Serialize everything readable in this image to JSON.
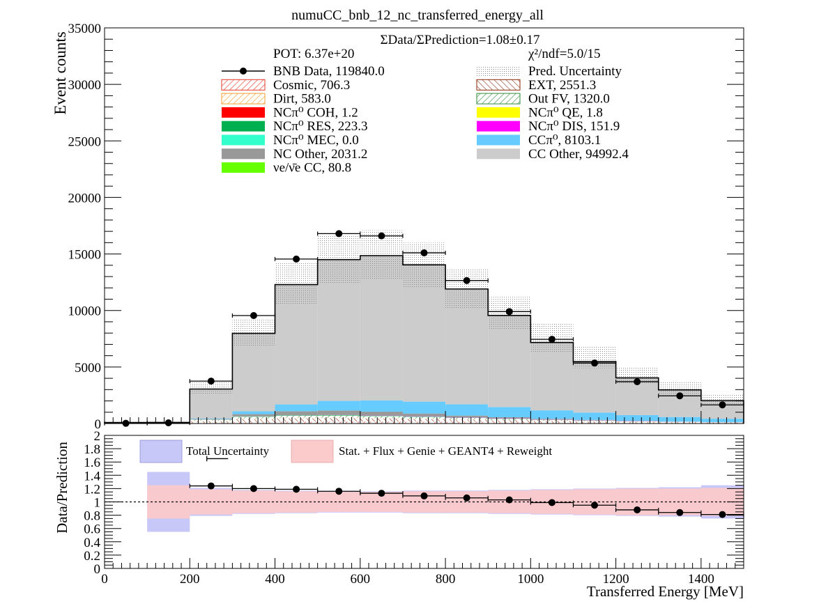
{
  "chart_data": [
    {
      "type": "bar",
      "title": "numuCC_bnb_12_nc_transferred_energy_all",
      "ylabel": "Event counts",
      "xlabel": "",
      "xlim": [
        0,
        1500
      ],
      "ylim": [
        0,
        35000
      ],
      "yticks": [
        "0",
        "5000",
        "10000",
        "15000",
        "20000",
        "25000",
        "30000",
        "35000"
      ],
      "annotations": {
        "ratio": "ΣData/ΣPrediction=1.08±0.17",
        "pot": "POT: 6.37e+20",
        "chi2": "χ²/ndf=5.0/15"
      },
      "legend_position": "top",
      "bin_edges": [
        0,
        100,
        200,
        300,
        400,
        500,
        600,
        700,
        800,
        900,
        1000,
        1100,
        1200,
        1300,
        1400,
        1500
      ],
      "legend": [
        {
          "name": "BNB Data",
          "value": "119840.0",
          "style": "marker",
          "color": "#000000"
        },
        {
          "name": "Pred. Uncertainty",
          "value": "",
          "style": "dots",
          "color": "#9a9a9a"
        },
        {
          "name": "Cosmic",
          "value": "706.3",
          "style": "hatch",
          "color": "#e8392a"
        },
        {
          "name": "EXT",
          "value": "2551.3",
          "style": "hatch2",
          "color": "#8b2a0a"
        },
        {
          "name": "Dirt",
          "value": "583.0",
          "style": "hatch",
          "color": "#f5a030"
        },
        {
          "name": "Out FV",
          "value": "1320.0",
          "style": "hatch",
          "color": "#2e8b3a"
        },
        {
          "name": "NCπ⁰ COH",
          "value": "1.2",
          "style": "fill",
          "color": "#ff0000"
        },
        {
          "name": "NCπ⁰ QE",
          "value": "1.8",
          "style": "fill",
          "color": "#ffff00"
        },
        {
          "name": "NCπ⁰ RES",
          "value": "223.3",
          "style": "fill",
          "color": "#00b050"
        },
        {
          "name": "NCπ⁰ DIS",
          "value": "151.9",
          "style": "fill",
          "color": "#ff00ff"
        },
        {
          "name": "NCπ⁰ MEC",
          "value": "0.0",
          "style": "fill",
          "color": "#33ffcc"
        },
        {
          "name": "CCπ⁰",
          "value": "8103.1",
          "style": "fill",
          "color": "#66ccff"
        },
        {
          "name": "NC Other",
          "value": "2031.2",
          "style": "fill",
          "color": "#999999"
        },
        {
          "name": "CC Other",
          "value": "94992.4",
          "style": "fill",
          "color": "#cccccc"
        },
        {
          "name": "νe/ν̄e CC",
          "value": "80.8",
          "style": "fill",
          "color": "#66ff00"
        }
      ],
      "stack_series": [
        {
          "name": "Cosmic",
          "color": "#e8392a",
          "values": [
            20,
            20,
            60,
            120,
            160,
            170,
            175,
            170,
            150,
            120,
            90,
            70,
            50,
            35,
            25
          ]
        },
        {
          "name": "EXT",
          "color": "#8b2a0a",
          "values": [
            30,
            30,
            150,
            260,
            300,
            300,
            270,
            230,
            200,
            170,
            130,
            110,
            90,
            70,
            50
          ]
        },
        {
          "name": "Dirt",
          "color": "#f5a030",
          "values": [
            5,
            5,
            60,
            80,
            80,
            75,
            60,
            50,
            40,
            30,
            25,
            20,
            15,
            10,
            8
          ]
        },
        {
          "name": "Out FV",
          "color": "#2e8b3a",
          "values": [
            5,
            5,
            70,
            140,
            160,
            160,
            150,
            140,
            120,
            100,
            80,
            60,
            45,
            35,
            25
          ]
        },
        {
          "name": "NCπ⁰ RES",
          "color": "#00b050",
          "values": [
            0,
            0,
            10,
            25,
            35,
            35,
            30,
            25,
            20,
            15,
            10,
            8,
            5,
            3,
            2
          ]
        },
        {
          "name": "NCπ⁰ DIS",
          "color": "#ff00ff",
          "values": [
            0,
            0,
            0,
            2,
            5,
            10,
            15,
            20,
            20,
            20,
            20,
            15,
            12,
            8,
            5
          ]
        },
        {
          "name": "NC Other",
          "color": "#999999",
          "values": [
            5,
            5,
            50,
            200,
            350,
            400,
            350,
            250,
            150,
            100,
            60,
            40,
            25,
            15,
            10
          ]
        },
        {
          "name": "CCπ⁰",
          "color": "#66ccff",
          "values": [
            5,
            5,
            50,
            250,
            600,
            850,
            1000,
            1050,
            1000,
            900,
            750,
            650,
            500,
            400,
            300
          ]
        },
        {
          "name": "CC Other",
          "color": "#cccccc",
          "values": [
            20,
            30,
            2600,
            6900,
            10600,
            12500,
            12800,
            12100,
            10200,
            8100,
            6000,
            4500,
            3300,
            2400,
            1600
          ]
        }
      ],
      "data_points": [
        {
          "x": 50,
          "y": 20,
          "err": 140
        },
        {
          "x": 150,
          "y": 60,
          "err": 250
        },
        {
          "x": 250,
          "y": 3750,
          "err": 60
        },
        {
          "x": 350,
          "y": 9550,
          "err": 100
        },
        {
          "x": 450,
          "y": 14550,
          "err": 120
        },
        {
          "x": 550,
          "y": 16800,
          "err": 130
        },
        {
          "x": 650,
          "y": 16600,
          "err": 130
        },
        {
          "x": 750,
          "y": 15100,
          "err": 120
        },
        {
          "x": 850,
          "y": 12650,
          "err": 110
        },
        {
          "x": 950,
          "y": 9900,
          "err": 100
        },
        {
          "x": 1050,
          "y": 7450,
          "err": 90
        },
        {
          "x": 1150,
          "y": 5350,
          "err": 75
        },
        {
          "x": 1250,
          "y": 3700,
          "err": 60
        },
        {
          "x": 1350,
          "y": 2450,
          "err": 50
        },
        {
          "x": 1450,
          "y": 1650,
          "err": 40
        }
      ],
      "uncertainty_band": [
        {
          "lo": 0,
          "hi": 0
        },
        {
          "lo": 0,
          "hi": 0
        },
        {
          "lo": 2550,
          "hi": 3650
        },
        {
          "lo": 6900,
          "hi": 9200
        },
        {
          "lo": 10500,
          "hi": 14300
        },
        {
          "lo": 12400,
          "hi": 16700
        },
        {
          "lo": 12800,
          "hi": 17100
        },
        {
          "lo": 12000,
          "hi": 16000
        },
        {
          "lo": 10200,
          "hi": 13700
        },
        {
          "lo": 8300,
          "hi": 11200
        },
        {
          "lo": 6300,
          "hi": 8900
        },
        {
          "lo": 4900,
          "hi": 6800
        },
        {
          "lo": 3500,
          "hi": 5000
        },
        {
          "lo": 2500,
          "hi": 3700
        },
        {
          "lo": 1650,
          "hi": 2650
        }
      ]
    },
    {
      "type": "scatter",
      "xlabel": "Transferred Energy [MeV]",
      "ylabel": "Data/Prediction",
      "xlim": [
        0,
        1500
      ],
      "ylim": [
        0,
        2
      ],
      "xticks": [
        "0",
        "200",
        "400",
        "600",
        "800",
        "1000",
        "1200",
        "1400"
      ],
      "yticks": [
        "0",
        "0.2",
        "0.4",
        "0.6",
        "0.8",
        "1",
        "1.2",
        "1.4",
        "1.6",
        "1.8",
        "2"
      ],
      "reference_line": 1,
      "legend": [
        {
          "name": "Total Uncertainty",
          "color": "#c8c8f8"
        },
        {
          "name": "Stat. + Flux + Genie + GEANT4 + Reweight",
          "color": "#fbcaca"
        }
      ],
      "total_band": [
        {
          "lo": 0,
          "hi": 0
        },
        {
          "lo": 0.55,
          "hi": 1.45
        },
        {
          "lo": 0.79,
          "hi": 1.21
        },
        {
          "lo": 0.82,
          "hi": 1.18
        },
        {
          "lo": 0.83,
          "hi": 1.17
        },
        {
          "lo": 0.84,
          "hi": 1.16
        },
        {
          "lo": 0.84,
          "hi": 1.16
        },
        {
          "lo": 0.83,
          "hi": 1.17
        },
        {
          "lo": 0.83,
          "hi": 1.17
        },
        {
          "lo": 0.82,
          "hi": 1.18
        },
        {
          "lo": 0.81,
          "hi": 1.19
        },
        {
          "lo": 0.8,
          "hi": 1.2
        },
        {
          "lo": 0.79,
          "hi": 1.21
        },
        {
          "lo": 0.78,
          "hi": 1.22
        },
        {
          "lo": 0.75,
          "hi": 1.25
        }
      ],
      "syst_band": [
        {
          "lo": 0,
          "hi": 0
        },
        {
          "lo": 0.75,
          "hi": 1.25
        },
        {
          "lo": 0.81,
          "hi": 1.19
        },
        {
          "lo": 0.83,
          "hi": 1.17
        },
        {
          "lo": 0.84,
          "hi": 1.16
        },
        {
          "lo": 0.85,
          "hi": 1.15
        },
        {
          "lo": 0.85,
          "hi": 1.15
        },
        {
          "lo": 0.84,
          "hi": 1.16
        },
        {
          "lo": 0.84,
          "hi": 1.16
        },
        {
          "lo": 0.83,
          "hi": 1.17
        },
        {
          "lo": 0.82,
          "hi": 1.18
        },
        {
          "lo": 0.81,
          "hi": 1.19
        },
        {
          "lo": 0.8,
          "hi": 1.2
        },
        {
          "lo": 0.8,
          "hi": 1.2
        },
        {
          "lo": 0.79,
          "hi": 1.21
        }
      ],
      "points": [
        {
          "x": 250,
          "y": 1.24,
          "err": 0.02
        },
        {
          "x": 350,
          "y": 1.2,
          "err": 0.01
        },
        {
          "x": 450,
          "y": 1.19,
          "err": 0.01
        },
        {
          "x": 550,
          "y": 1.16,
          "err": 0.01
        },
        {
          "x": 650,
          "y": 1.13,
          "err": 0.01
        },
        {
          "x": 750,
          "y": 1.09,
          "err": 0.01
        },
        {
          "x": 850,
          "y": 1.06,
          "err": 0.01
        },
        {
          "x": 950,
          "y": 1.03,
          "err": 0.01
        },
        {
          "x": 1050,
          "y": 0.99,
          "err": 0.01
        },
        {
          "x": 1150,
          "y": 0.95,
          "err": 0.01
        },
        {
          "x": 1250,
          "y": 0.88,
          "err": 0.02
        },
        {
          "x": 1350,
          "y": 0.84,
          "err": 0.02
        },
        {
          "x": 1450,
          "y": 0.81,
          "err": 0.02
        }
      ],
      "orphan_point": {
        "x": 240,
        "y": 1.65,
        "err": 0.04
      }
    }
  ]
}
